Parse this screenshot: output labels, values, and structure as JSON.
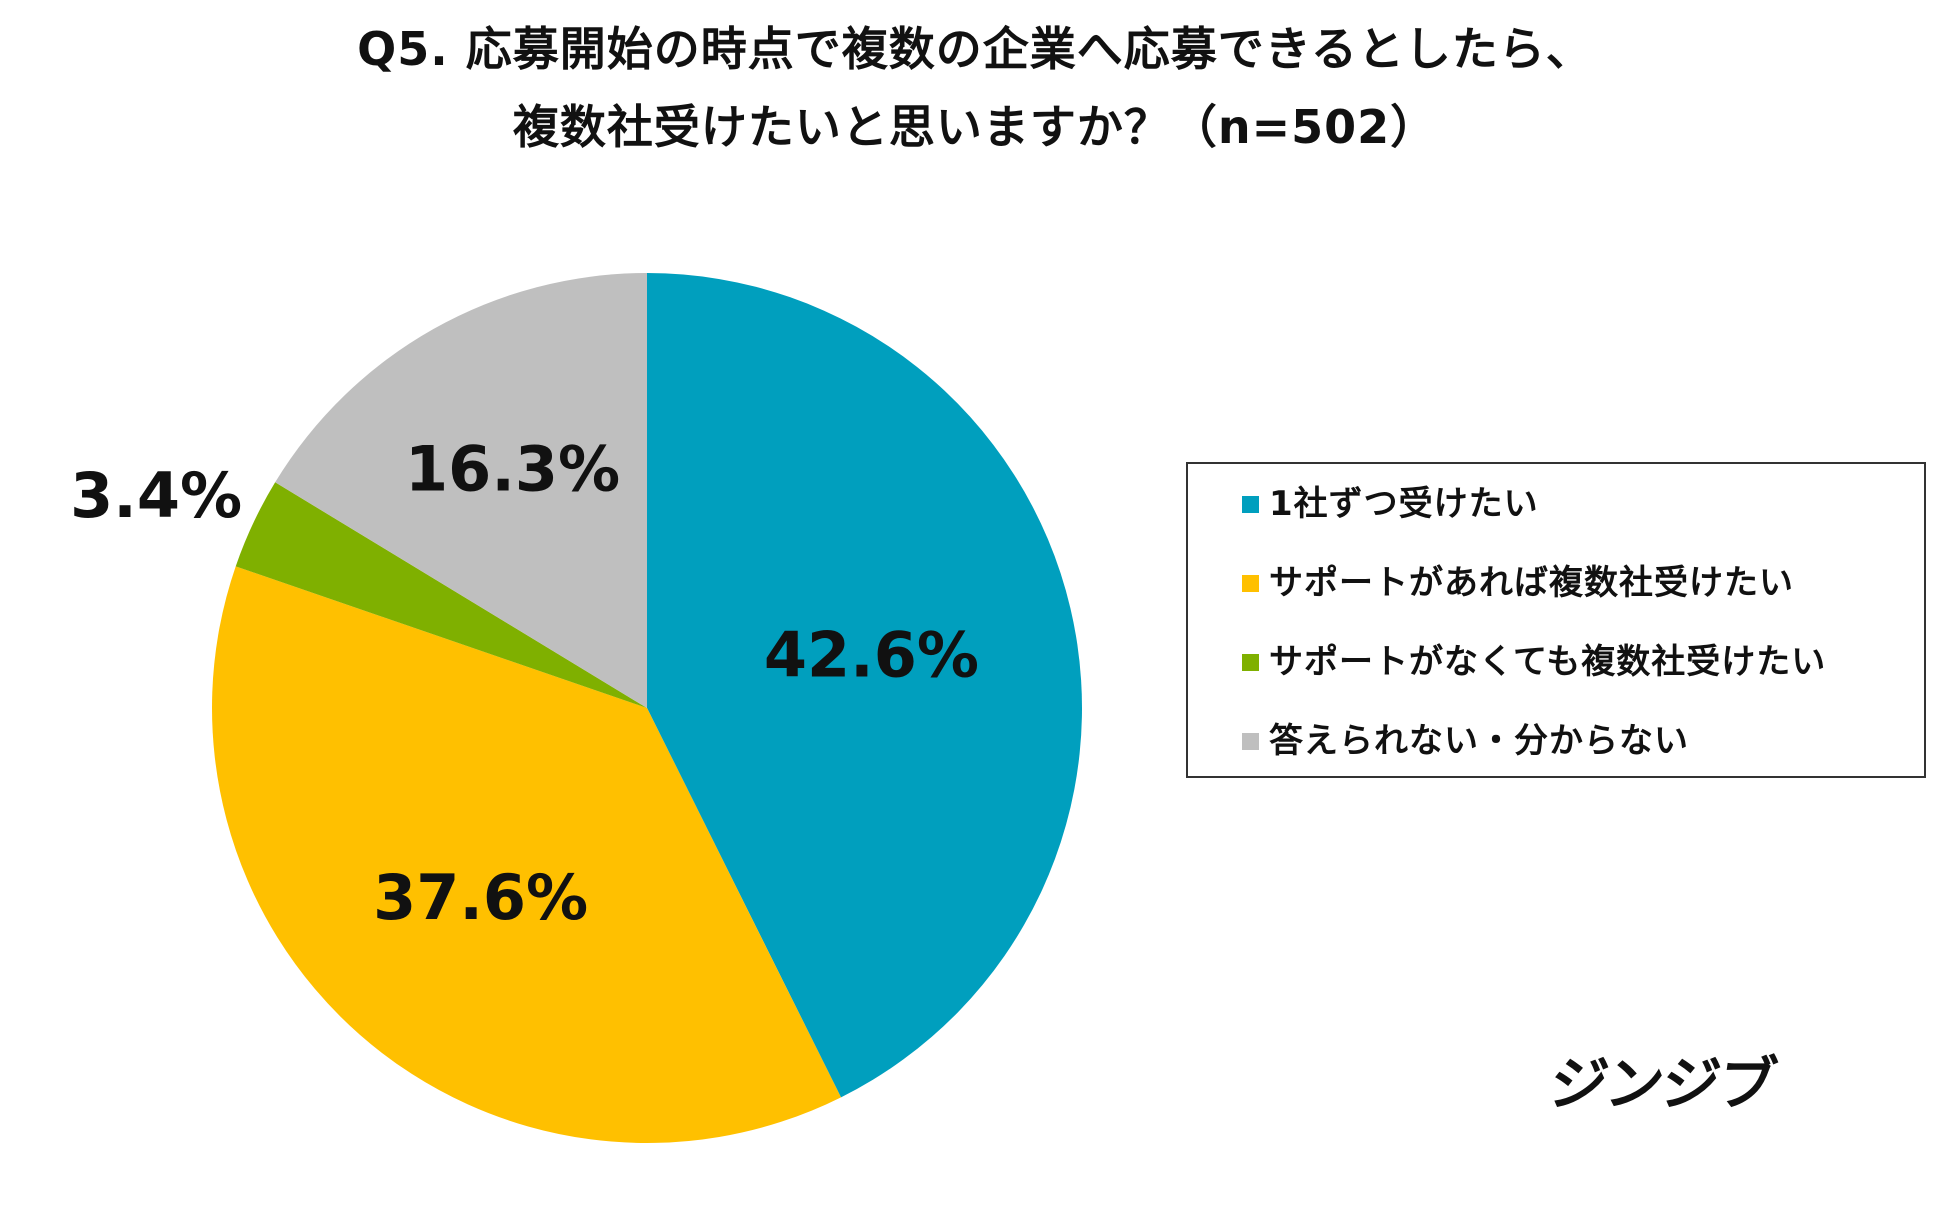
{
  "header": {
    "title_line_1": "Q5.  応募開始の時点で複数の企業へ応募できるとしたら、",
    "title_line_2": "複数社受けたいと思いますか？（n=502）"
  },
  "chart_data": {
    "type": "pie",
    "title": "Q5.  応募開始の時点で複数の企業へ応募できるとしたら、複数社受けたいと思いますか？（n=502）",
    "start": "12 o'clock",
    "direction": "clockwise",
    "legend_placement": "right",
    "slices": [
      {
        "name": "1社ずつ受けたい",
        "value": 42.6,
        "label": "42.6%",
        "color": "#009fbe"
      },
      {
        "name": "サポートがあれば複数社受けたい",
        "value": 37.6,
        "label": "37.6%",
        "color": "#ffc000"
      },
      {
        "name": "サポートがなくても複数社受けたい",
        "value": 3.4,
        "label": "3.4%",
        "color": "#7fb000"
      },
      {
        "name": "答えられない・分からない",
        "value": 16.3,
        "label": "16.3%",
        "color": "#bfbfbf"
      }
    ]
  },
  "brand": {
    "logo_text": "ジンジブ"
  }
}
